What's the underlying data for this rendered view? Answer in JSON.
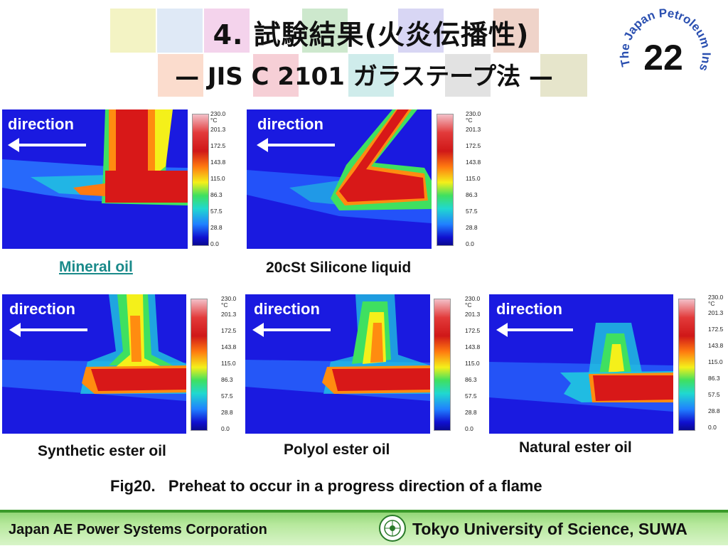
{
  "slide": {
    "title_line1": "4. 試験結果(火炎伝播性)",
    "title_line2": "— JIS C 2101 ガラステープ法 —",
    "page_number": "22",
    "seal_text": "The Japan Petroleum Institute",
    "figure_caption": "Fig20.   Preheat to occur in a progress direction of a flame"
  },
  "panels": [
    {
      "direction_label": "direction",
      "caption": "Mineral oil",
      "caption_link": true
    },
    {
      "direction_label": "direction",
      "caption": "20cSt Silicone liquid"
    },
    {
      "direction_label": "direction",
      "caption": "Synthetic ester oil"
    },
    {
      "direction_label": "direction",
      "caption": "Polyol ester oil"
    },
    {
      "direction_label": "direction",
      "caption": "Natural ester oil"
    }
  ],
  "color_scale": {
    "max_label": "230.0",
    "unit": "°C",
    "ticks": [
      "201.3",
      "172.5",
      "143.8",
      "115.0",
      "86.3",
      "57.5",
      "28.8",
      "0.0"
    ]
  },
  "footer": {
    "left": "Japan AE Power Systems Corporation",
    "right": "Tokyo University of Science, SUWA"
  },
  "colors": {
    "heat_background": "#1a1ae0",
    "flame_hot": "#d81818",
    "footer_green": "#8ad16e",
    "link_teal": "#1a8a8a"
  }
}
